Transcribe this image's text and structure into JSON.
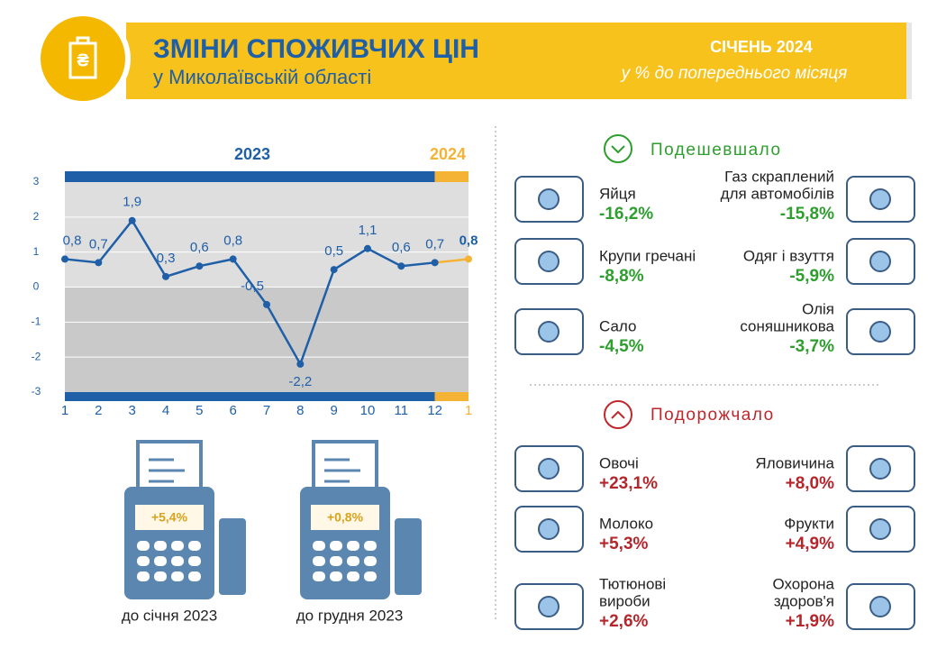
{
  "header": {
    "title": "ЗМІНИ СПОЖИВЧИХ ЦІН",
    "subtitle": "у Миколаївській області",
    "period": "СІЧЕНЬ 2024",
    "note": "у % до попереднього місяця"
  },
  "chart_data": {
    "type": "line",
    "categories": [
      "1",
      "2",
      "3",
      "4",
      "5",
      "6",
      "7",
      "8",
      "9",
      "10",
      "11",
      "12",
      "1"
    ],
    "series": [
      {
        "name": "2023",
        "color": "#1f5fa8",
        "values": [
          0.8,
          0.7,
          1.9,
          0.3,
          0.6,
          0.8,
          -0.5,
          -2.2,
          0.5,
          1.1,
          0.6,
          0.7,
          null
        ],
        "value_labels": [
          "0,8",
          "0,7",
          "1,9",
          "0,3",
          "0,6",
          "0,8",
          "-0,5",
          "-2,2",
          "0,5",
          "1,1",
          "0,6",
          "0,7",
          null
        ]
      },
      {
        "name": "2024",
        "color": "#f5b335",
        "values": [
          null,
          null,
          null,
          null,
          null,
          null,
          null,
          null,
          null,
          null,
          null,
          null,
          0.8
        ],
        "value_labels": [
          null,
          null,
          null,
          null,
          null,
          null,
          null,
          null,
          null,
          null,
          null,
          null,
          "0,8"
        ]
      }
    ],
    "ylim": [
      -3,
      3
    ],
    "yticks": [
      -3,
      -2,
      -1,
      0,
      1,
      2,
      3
    ],
    "grid": true
  },
  "receipts": [
    {
      "value": "+5,4%",
      "caption": "до січня 2023"
    },
    {
      "value": "+0,8%",
      "caption": "до грудня 2023"
    }
  ],
  "cheaper": {
    "heading": "Подешевшало",
    "items": [
      {
        "name": [
          "Яйця"
        ],
        "value": "-16,2%"
      },
      {
        "name": [
          "Газ скраплений",
          "для автомобілів"
        ],
        "value": "-15,8%"
      },
      {
        "name": [
          "Крупи гречані"
        ],
        "value": "-8,8%"
      },
      {
        "name": [
          "Одяг і взуття"
        ],
        "value": "-5,9%"
      },
      {
        "name": [
          "Сало"
        ],
        "value": "-4,5%"
      },
      {
        "name": [
          "Олія",
          "соняшникова"
        ],
        "value": "-3,7%"
      }
    ]
  },
  "pricier": {
    "heading": "Подорожчало",
    "items": [
      {
        "name": [
          "Овочі"
        ],
        "value": "+23,1%"
      },
      {
        "name": [
          "Яловичина"
        ],
        "value": "+8,0%"
      },
      {
        "name": [
          "Молоко"
        ],
        "value": "+5,3%"
      },
      {
        "name": [
          "Фрукти"
        ],
        "value": "+4,9%"
      },
      {
        "name": [
          "Тютюнові",
          "вироби"
        ],
        "value": "+2,6%"
      },
      {
        "name": [
          "Охорона",
          "здоров'я"
        ],
        "value": "+1,9%"
      }
    ]
  }
}
